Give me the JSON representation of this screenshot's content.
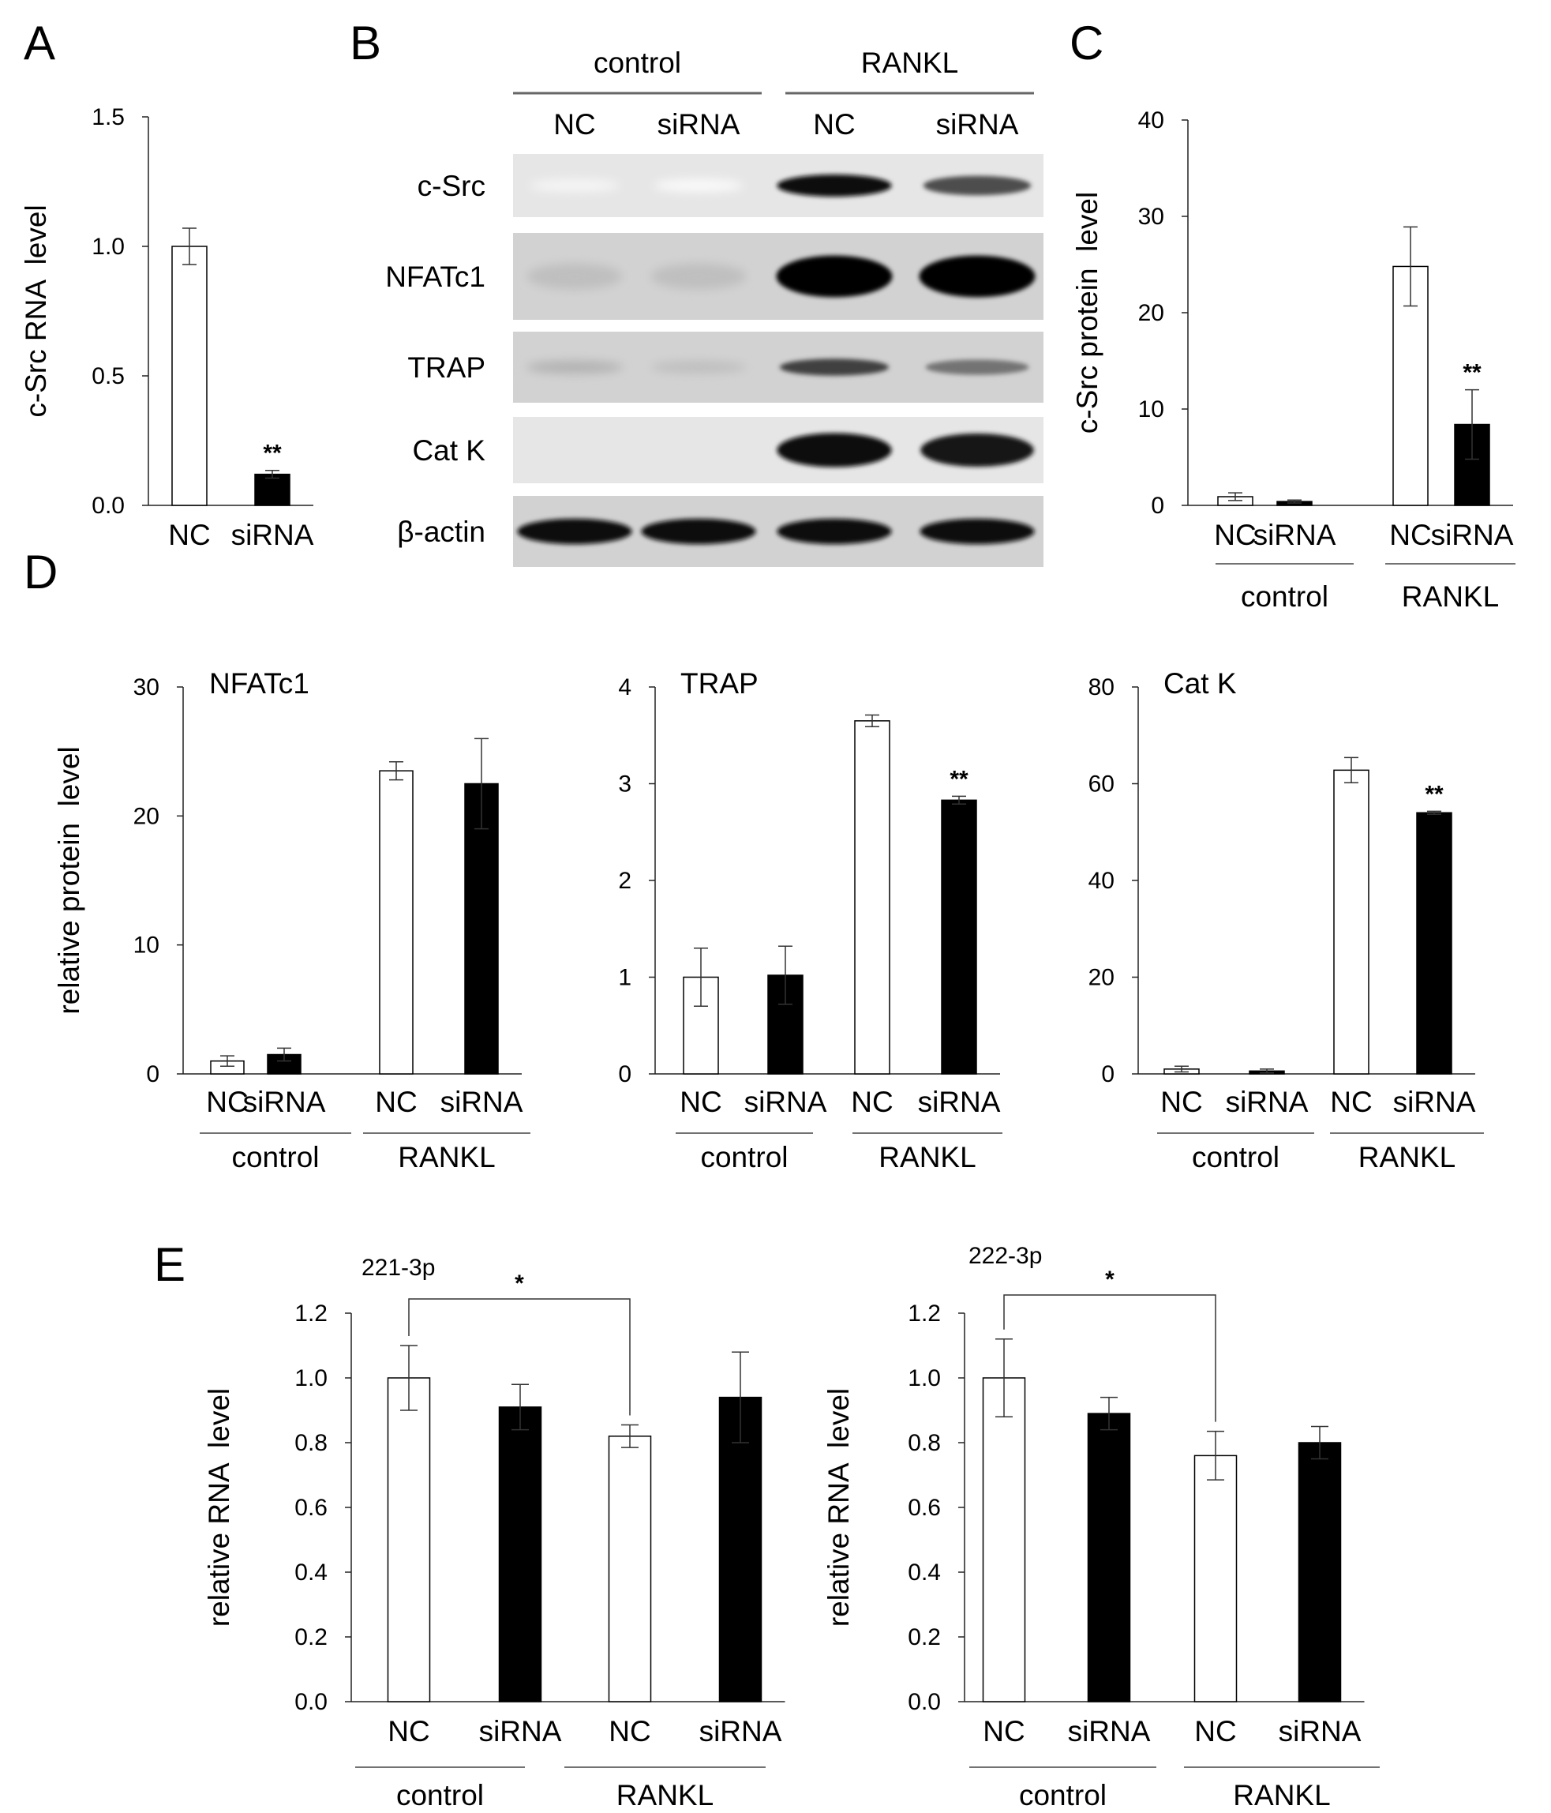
{
  "panel_letters": [
    "A",
    "B",
    "C",
    "D",
    "E"
  ],
  "blot": {
    "groups": [
      "control",
      "RANKL"
    ],
    "lanes": [
      "NC",
      "siRNA",
      "NC",
      "siRNA"
    ],
    "rows": [
      {
        "label": "c-Src",
        "intensity": [
          0.04,
          0.02,
          0.95,
          0.7
        ]
      },
      {
        "label": "NFATc1",
        "intensity": [
          0.25,
          0.25,
          1.0,
          1.0
        ]
      },
      {
        "label": "TRAP",
        "intensity": [
          0.3,
          0.25,
          0.75,
          0.55
        ]
      },
      {
        "label": "Cat K",
        "intensity": [
          0.0,
          0.0,
          0.95,
          0.9
        ]
      },
      {
        "label": "β-actin",
        "intensity": [
          0.95,
          0.95,
          0.95,
          0.95
        ]
      }
    ]
  },
  "chart_data": [
    {
      "id": "A",
      "type": "bar",
      "title": "",
      "ylabel": "c-Src RNA  level",
      "ylim": [
        0,
        1.5
      ],
      "yticks": [
        "0.0",
        "0.5",
        "1.0",
        "1.5"
      ],
      "categories": [
        "NC",
        "siRNA"
      ],
      "values": [
        1.0,
        0.12
      ],
      "errors": [
        0.07,
        0.015
      ],
      "fills": [
        "white",
        "black"
      ],
      "significance": [
        "",
        "**"
      ],
      "groups": []
    },
    {
      "id": "C",
      "type": "bar",
      "title": "",
      "ylabel": "c-Src protein  level",
      "ylim": [
        0,
        40
      ],
      "yticks": [
        "0",
        "10",
        "20",
        "30",
        "40"
      ],
      "categories": [
        "NC",
        "siRNA",
        "NC",
        "siRNA"
      ],
      "values": [
        0.9,
        0.4,
        24.8,
        8.4
      ],
      "errors": [
        0.4,
        0.15,
        4.1,
        3.6
      ],
      "fills": [
        "white",
        "black",
        "white",
        "black"
      ],
      "significance": [
        "",
        "",
        "",
        "**"
      ],
      "groups": [
        "control",
        "RANKL"
      ]
    },
    {
      "id": "D1",
      "type": "bar",
      "title": "NFATc1",
      "ylabel": "relative protein  level",
      "ylim": [
        0,
        30
      ],
      "yticks": [
        "0",
        "10",
        "20",
        "30"
      ],
      "categories": [
        "NC",
        "siRNA",
        "NC",
        "siRNA"
      ],
      "values": [
        1.0,
        1.5,
        23.5,
        22.5
      ],
      "errors": [
        0.4,
        0.5,
        0.7,
        3.5
      ],
      "fills": [
        "white",
        "black",
        "white",
        "black"
      ],
      "significance": [
        "",
        "",
        "",
        ""
      ],
      "groups": [
        "control",
        "RANKL"
      ]
    },
    {
      "id": "D2",
      "type": "bar",
      "title": "TRAP",
      "ylabel": "",
      "ylim": [
        0,
        4
      ],
      "yticks": [
        "0",
        "1",
        "2",
        "3",
        "4"
      ],
      "categories": [
        "NC",
        "siRNA",
        "NC",
        "siRNA"
      ],
      "values": [
        1.0,
        1.02,
        3.65,
        2.83
      ],
      "errors": [
        0.3,
        0.3,
        0.06,
        0.04
      ],
      "fills": [
        "white",
        "black",
        "white",
        "black"
      ],
      "significance": [
        "",
        "",
        "",
        "**"
      ],
      "groups": [
        "control",
        "RANKL"
      ]
    },
    {
      "id": "D3",
      "type": "bar",
      "title": "Cat K",
      "ylabel": "",
      "ylim": [
        0,
        80
      ],
      "yticks": [
        "0",
        "20",
        "40",
        "60",
        "80"
      ],
      "categories": [
        "NC",
        "siRNA",
        "NC",
        "siRNA"
      ],
      "values": [
        1.0,
        0.6,
        62.8,
        54.0
      ],
      "errors": [
        0.6,
        0.4,
        2.6,
        0.3
      ],
      "fills": [
        "white",
        "black",
        "white",
        "black"
      ],
      "significance": [
        "",
        "",
        "",
        "**"
      ],
      "groups": [
        "control",
        "RANKL"
      ]
    },
    {
      "id": "E1",
      "type": "bar",
      "title": "221-3p",
      "ylabel": "relative RNA  level",
      "ylim": [
        0,
        1.2
      ],
      "yticks": [
        "0.0",
        "0.2",
        "0.4",
        "0.6",
        "0.8",
        "1.0",
        "1.2"
      ],
      "categories": [
        "NC",
        "siRNA",
        "NC",
        "siRNA"
      ],
      "values": [
        1.0,
        0.91,
        0.82,
        0.94
      ],
      "errors": [
        0.1,
        0.07,
        0.035,
        0.14
      ],
      "fills": [
        "white",
        "black",
        "white",
        "black"
      ],
      "significance": [
        "",
        "",
        "",
        ""
      ],
      "bracket": {
        "from": 0,
        "to": 2,
        "label": "*"
      },
      "groups": [
        "control",
        "RANKL"
      ]
    },
    {
      "id": "E2",
      "type": "bar",
      "title": "222-3p",
      "ylabel": "relative RNA  level",
      "ylim": [
        0,
        1.2
      ],
      "yticks": [
        "0.0",
        "0.2",
        "0.4",
        "0.6",
        "0.8",
        "1.0",
        "1.2"
      ],
      "categories": [
        "NC",
        "siRNA",
        "NC",
        "siRNA"
      ],
      "values": [
        1.0,
        0.89,
        0.76,
        0.8
      ],
      "errors": [
        0.12,
        0.05,
        0.075,
        0.05
      ],
      "fills": [
        "white",
        "black",
        "white",
        "black"
      ],
      "significance": [
        "",
        "",
        "",
        ""
      ],
      "bracket": {
        "from": 0,
        "to": 2,
        "label": "*"
      },
      "groups": [
        "control",
        "RANKL"
      ]
    }
  ]
}
